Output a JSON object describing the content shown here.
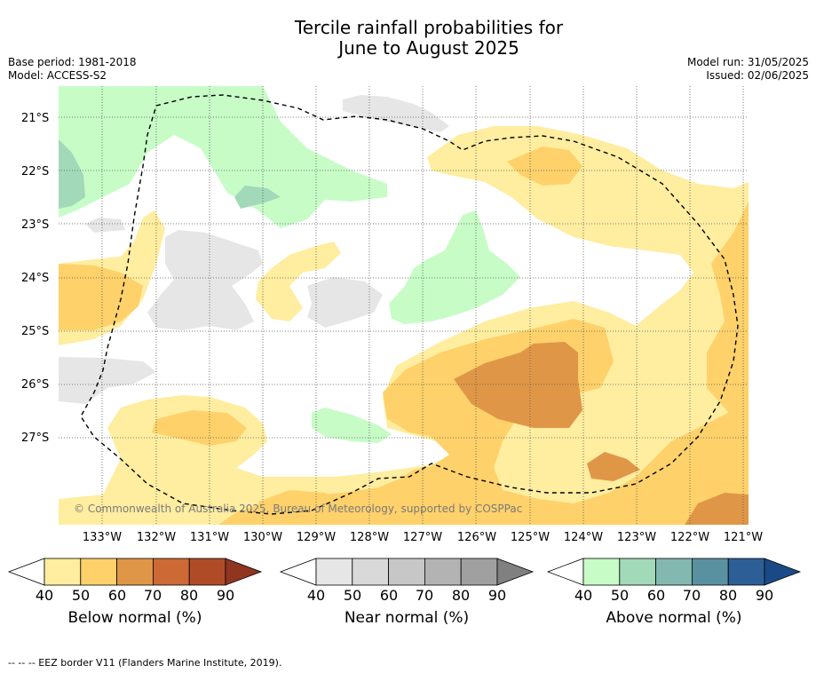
{
  "title_line1": "Tercile rainfall probabilities for",
  "title_line2": "June to August 2025",
  "base_period": "Base period: 1981-2018",
  "model": "Model: ACCESS-S2",
  "model_run": "Model run: 31/05/2025",
  "issued": "Issued: 02/06/2025",
  "lat_labels": [
    "21°S",
    "22°S",
    "23°S",
    "24°S",
    "25°S",
    "26°S",
    "27°S"
  ],
  "lon_labels": [
    "133°W",
    "132°W",
    "131°W",
    "130°W",
    "129°W",
    "128°W",
    "127°W",
    "126°W",
    "125°W",
    "124°W",
    "123°W",
    "122°W",
    "121°W"
  ],
  "copyright": "© Commonwealth of Australia 2025, Bureau of Meteorology, supported by COSPPac",
  "colorbars": {
    "below": {
      "label": "Below normal (%)",
      "ticks": [
        "40",
        "50",
        "60",
        "70",
        "80",
        "90"
      ],
      "colors": [
        "#ffeda0",
        "#fed16a",
        "#e09647",
        "#cd6935",
        "#b04b28",
        "#8f3520"
      ]
    },
    "near": {
      "label": "Near normal (%)",
      "ticks": [
        "40",
        "50",
        "60",
        "70",
        "80",
        "90"
      ],
      "colors": [
        "#e6e6e6",
        "#d9d9d9",
        "#c7c7c7",
        "#b3b3b3",
        "#a0a0a0",
        "#808080"
      ]
    },
    "above": {
      "label": "Above normal (%)",
      "ticks": [
        "40",
        "50",
        "60",
        "70",
        "80",
        "90"
      ],
      "colors": [
        "#c7fcc7",
        "#a1d9b9",
        "#83b8b0",
        "#5a91a0",
        "#2d5f96",
        "#1a4a85"
      ]
    }
  },
  "footer": "-- -- -- EEZ border V11 (Flanders Marine Institute, 2019)."
}
